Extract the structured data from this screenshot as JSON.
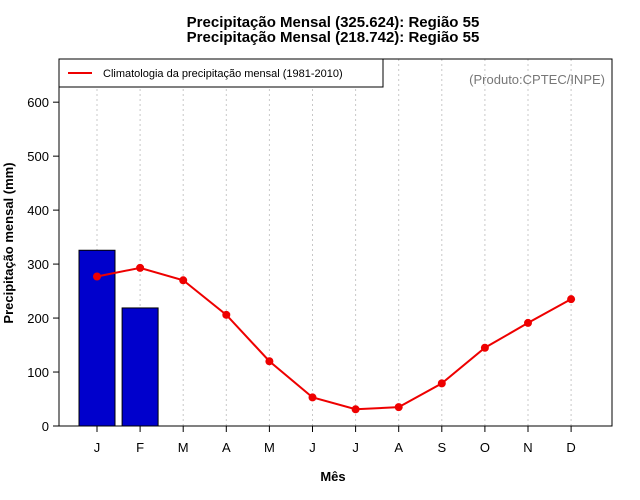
{
  "chart_data": {
    "type": "bar",
    "title_lines": [
      "Precipitação Mensal (325.624): Região 55",
      "Precipitação Mensal (218.742): Região 55"
    ],
    "xlabel": "Mês",
    "ylabel": "Precipitação mensal (mm)",
    "categories": [
      "J",
      "F",
      "M",
      "A",
      "M",
      "J",
      "J",
      "A",
      "S",
      "O",
      "N",
      "D"
    ],
    "ylim": [
      0,
      680
    ],
    "yticks": [
      0,
      100,
      200,
      300,
      400,
      500,
      600
    ],
    "bars": {
      "values": [
        325.624,
        218.742
      ],
      "color": "#0000cc"
    },
    "series": [
      {
        "name": "Climatologia da precipitação mensal (1981-2010)",
        "type": "line",
        "color": "#ee0000",
        "values": [
          277,
          293,
          270,
          206,
          120,
          53,
          31,
          35,
          79,
          145,
          191,
          235
        ]
      }
    ],
    "vertical_grid": true,
    "legend_position": "top-left",
    "annotation": "(Produto:CPTEC/INPE)"
  }
}
